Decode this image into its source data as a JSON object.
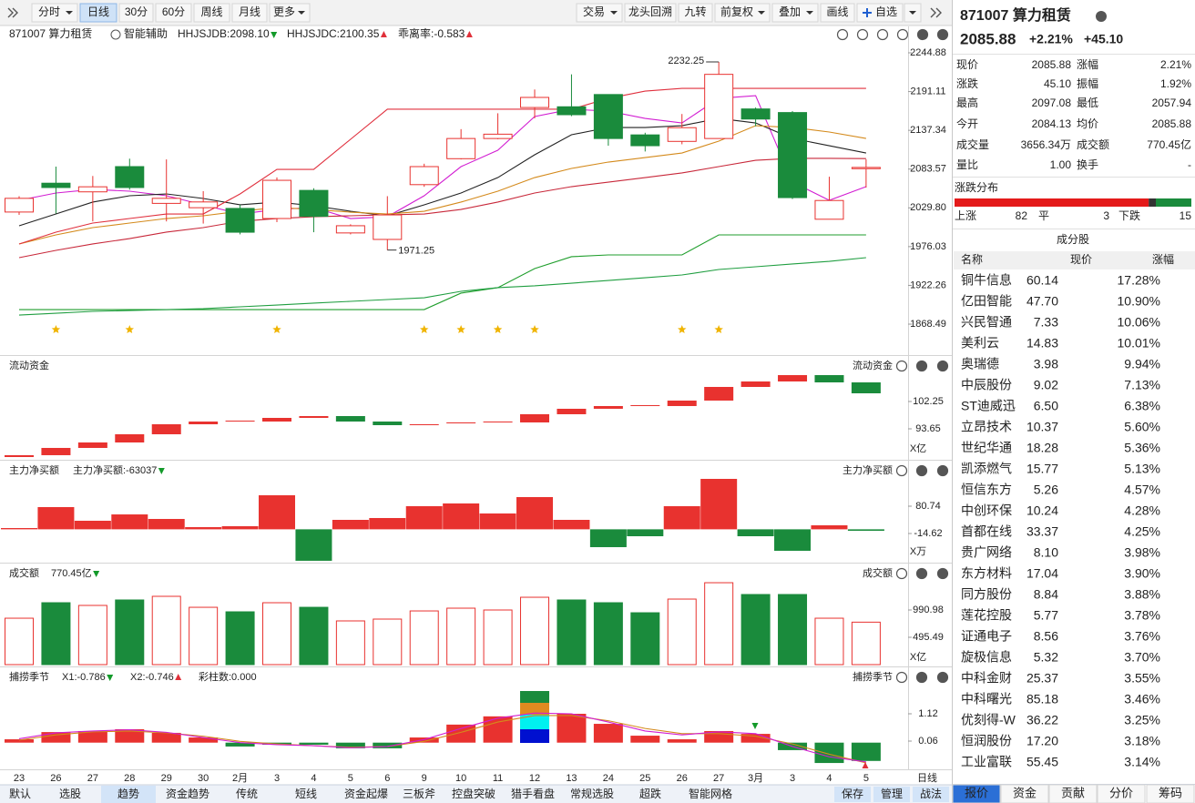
{
  "toolbar": {
    "left": [
      "分时",
      "日线",
      "30分",
      "60分",
      "周线",
      "月线",
      "更多"
    ],
    "selected": 1,
    "right": [
      "交易",
      "龙头回溯",
      "九转",
      "前复权",
      "叠加",
      "画线",
      "自选"
    ]
  },
  "info": {
    "name": "871007 算力租赁",
    "assist": "智能辅助",
    "ind1": "HHJSJDB:2098.10",
    "ind2": "HHJSJDC:2100.35",
    "ind3": "乖离率:-0.583"
  },
  "chart": {
    "dates": [
      "23",
      "26",
      "27",
      "28",
      "29",
      "30",
      "2月",
      "3",
      "4",
      "5",
      "6",
      "9",
      "10",
      "11",
      "12",
      "13",
      "24",
      "25",
      "26",
      "27",
      "3月",
      "3",
      "4",
      "5"
    ],
    "open": [
      2024,
      2064,
      2052,
      2087,
      2036,
      2030,
      2029,
      2015,
      2054,
      1995,
      1986,
      2062,
      2098,
      2126,
      2169,
      2170,
      2187,
      2131,
      2122,
      2126,
      2167,
      2162,
      2014,
      2084.13
    ],
    "high": [
      2046,
      2087,
      2074,
      2098,
      2097,
      2053,
      2034,
      2072,
      2057,
      2007,
      2046,
      2091,
      2139,
      2161,
      2194,
      2215,
      2187,
      2134,
      2160,
      2232.25,
      2169,
      2164,
      2073,
      2097.08
    ],
    "low": [
      2020,
      2022,
      2011,
      2055,
      2011,
      2008,
      1993,
      2010,
      1996,
      1993,
      1971.25,
      2059,
      2097,
      2125,
      2154,
      2157,
      2116,
      2108,
      2118,
      2126,
      2143,
      2042,
      2014,
      2057.94
    ],
    "close": [
      2043,
      2058,
      2059,
      2058,
      2043,
      2038,
      1996,
      2068,
      2018,
      2005,
      2020,
      2087,
      2126,
      2132,
      2183,
      2159,
      2126,
      2116,
      2141,
      2215,
      2153,
      2044,
      2040,
      2085.88
    ],
    "up_color": "#e8322f",
    "down_color": "#1a8b3c",
    "ylim": [
      1828.1,
      2261.3
    ],
    "yticks": [
      2244.88,
      2191.11,
      2137.34,
      2083.57,
      {
        "value": 2029.8,
        "label": "2029.80"
      },
      1976.03,
      1922.26,
      1868.49
    ],
    "lines": [
      {
        "color": "#d21ed2",
        "values": [
          2040.3,
          2050.4,
          2055.4,
          2052.9,
          2046.6,
          2034.0,
          2021.3,
          2027.6,
          2030.2,
          2015.0,
          2017.5,
          2046.6,
          2087.0,
          2109.7,
          2156.5,
          2166.6,
          2164.0,
          2153.9,
          2147.6,
          2181.7,
          2185.5,
          2065.5,
          2040.3,
          2059.2
        ]
      },
      {
        "color": "#222222",
        "values": [
          2004.9,
          2021.3,
          2037.8,
          2046.6,
          2049.1,
          2042.8,
          2034.0,
          2037.8,
          2032.7,
          2025.1,
          2018.8,
          2034.0,
          2050.4,
          2071.8,
          2103.4,
          2131.2,
          2141.3,
          2141.3,
          2143.8,
          2153.9,
          2147.6,
          2126.1,
          2116.0,
          2105.9
        ]
      },
      {
        "color": "#d48a1c",
        "values": [
          1979.7,
          1992.3,
          2002.4,
          2008.7,
          2015.0,
          2018.8,
          2025.1,
          2030.2,
          2027.6,
          2023.8,
          2021.3,
          2025.1,
          2037.8,
          2052.9,
          2071.8,
          2084.5,
          2093.3,
          2099.6,
          2105.9,
          2122.4,
          2143.8,
          2141.3,
          2135.0,
          2126.1
        ]
      },
      {
        "color": "#c8283a",
        "values": [
          1960.7,
          1970.8,
          1979.7,
          1987.2,
          1996.1,
          2002.4,
          2011.2,
          2015.0,
          2017.5,
          2018.8,
          2020.1,
          2021.3,
          2027.6,
          2037.8,
          2050.4,
          2059.2,
          2065.5,
          2071.8,
          2078.2,
          2087.0,
          2095.8,
          2098.4,
          2098.4,
          2098.1
        ]
      },
      {
        "color": "#e0303e",
        "values": [
          1979.7,
          1996.1,
          2008.7,
          2015.0,
          2021.3,
          2021.3,
          2049.1,
          2083.2,
          2083.2,
          2124.9,
          2166.6,
          2166.6,
          2166.6,
          2166.6,
          2166.6,
          2166.6,
          2181.7,
          2191.8,
          2195.6,
          2195.6,
          2195.6,
          2195.6,
          2195.6,
          2195.6
        ]
      },
      {
        "color": "#1f9e2c",
        "values": [
          1888.7,
          1888.7,
          1888.7,
          1888.7,
          1888.7,
          1888.7,
          1888.7,
          1888.7,
          1888.7,
          1888.7,
          1888.7,
          1888.7,
          1911.5,
          1919.1,
          1945.6,
          1962.0,
          1964.5,
          1964.5,
          1964.5,
          1992.3,
          1992.3,
          1992.3,
          1992.3,
          1992.3
        ]
      },
      {
        "color": "#1f9e40",
        "values": [
          1881.1,
          1883.6,
          1886.2,
          1887.4,
          1888.7,
          1890.0,
          1892.5,
          1895.0,
          1897.6,
          1900.1,
          1902.6,
          1905.1,
          1914.0,
          1919.1,
          1921.6,
          1925.3,
          1929.1,
          1932.9,
          1936.7,
          1944.3,
          1948.1,
          1951.9,
          1955.6,
          1960.7
        ]
      }
    ]
  },
  "panels": {
    "flow": {
      "title": "流动资金",
      "unit": "X亿",
      "open": [
        84.76,
        85.34,
        87.63,
        89.35,
        91.93,
        95.08,
        95.94,
        95.94,
        97.09,
        97.66,
        95.94,
        94.8,
        95.37,
        95.66,
        95.66,
        98.24,
        99.96,
        100.82,
        100.82,
        102.54,
        106.84,
        108.56,
        110.56,
        108.27
      ],
      "close": [
        85.34,
        87.63,
        89.35,
        91.93,
        95.08,
        95.94,
        96.23,
        97.09,
        97.66,
        95.94,
        94.8,
        95.08,
        95.66,
        95.94,
        98.24,
        99.96,
        100.82,
        101.1,
        102.54,
        106.84,
        108.56,
        110.56,
        108.27,
        104.83
      ],
      "ylim": [
        83.9,
        116.3
      ],
      "yticks": [
        102.25,
        93.65
      ]
    },
    "main_net": {
      "title": "主力净买额",
      "reading": "主力净买额:-63037",
      "unit": "X万",
      "values": [
        4.4,
        77.6,
        29.9,
        52.0,
        36.2,
        7.6,
        10.8,
        118.9,
        -109.9,
        33.0,
        39.4,
        80.7,
        90.3,
        55.3,
        112.5,
        33.0,
        -62.3,
        -24.2,
        80.7,
        176.1,
        -24.2,
        -75.0,
        14.0,
        -5.1
      ],
      "ylim": [
        -116.4,
        233.3
      ],
      "yticks": [
        80.74,
        -14.62
      ]
    },
    "turnover": {
      "title": "成交额",
      "reading": "770.45亿",
      "unit": "X亿",
      "values": [
        842,
        1123,
        1074,
        1173,
        1239,
        1040,
        958,
        1123,
        1040,
        793,
        826,
        974,
        1024,
        991,
        1222,
        1173,
        1123,
        941,
        1189,
        1486,
        1272,
        1272,
        842,
        770.45
      ],
      "ylim": [
        -33,
        1784
      ],
      "yticks": [
        990.98,
        495.49
      ]
    },
    "season": {
      "title": "捕捞季节",
      "x1": "X1:-0.786",
      "x2": "X2:-0.746",
      "bars": "彩柱数:0.000",
      "values": [
        0.13,
        0.41,
        0.45,
        0.52,
        0.38,
        0.2,
        -0.15,
        -0.08,
        -0.08,
        -0.22,
        -0.22,
        0.2,
        0.7,
        1.02,
        1.19,
        1.12,
        0.73,
        0.27,
        0.13,
        0.45,
        0.34,
        -0.29,
        -0.79,
        -0.71
      ],
      "lines": [
        {
          "color": "#d48a1c",
          "values": [
            0.1,
            0.3,
            0.42,
            0.45,
            0.38,
            0.25,
            0.05,
            -0.05,
            -0.12,
            -0.18,
            -0.15,
            0.05,
            0.4,
            0.8,
            1.05,
            1.05,
            0.85,
            0.55,
            0.35,
            0.35,
            0.25,
            -0.05,
            -0.45,
            -0.786
          ]
        },
        {
          "color": "#d21ed2",
          "values": [
            0.15,
            0.38,
            0.45,
            0.5,
            0.4,
            0.2,
            0.0,
            -0.08,
            -0.12,
            -0.2,
            -0.15,
            0.12,
            0.55,
            0.95,
            1.15,
            1.12,
            0.8,
            0.45,
            0.3,
            0.42,
            0.35,
            -0.15,
            -0.55,
            -0.746
          ]
        }
      ],
      "ylim": [
        -1.035,
        2.816
      ],
      "yticks": [
        1.12,
        0.06
      ]
    }
  },
  "period_label": "日线",
  "bottom_tabs": {
    "items": [
      "默认",
      "选股",
      "趋势",
      "资金趋势",
      "传统",
      "短线",
      "资金起爆",
      "三板斧",
      "控盘突破",
      "猎手看盘",
      "常规选股",
      "超跌",
      "智能网格"
    ],
    "selected": 2,
    "actions": [
      "保存",
      "管理",
      "战法"
    ]
  },
  "quote": {
    "title": "871007 算力租赁",
    "price": "2085.88",
    "pct": "+2.21%",
    "change": "+45.10",
    "cells": [
      {
        "label": "现价",
        "value": "2085.88",
        "color": "#e8322f"
      },
      {
        "label": "涨幅",
        "value": "2.21%",
        "color": "#e8322f"
      },
      {
        "label": "涨跌",
        "value": "45.10",
        "color": "#e8322f"
      },
      {
        "label": "振幅",
        "value": "1.92%",
        "color": "#222222"
      },
      {
        "label": "最高",
        "value": "2097.08",
        "color": "#e8322f"
      },
      {
        "label": "最低",
        "value": "2057.94",
        "color": "#e8322f"
      },
      {
        "label": "今开",
        "value": "2084.13",
        "color": "#e8322f"
      },
      {
        "label": "均价",
        "value": "2085.88",
        "color": "#e8322f"
      },
      {
        "label": "成交量",
        "value": "3656.34万",
        "color": "#222222"
      },
      {
        "label": "成交额",
        "value": "770.45亿",
        "color": "#222222"
      },
      {
        "label": "量比",
        "value": "1.00",
        "color": "#222222"
      },
      {
        "label": "换手",
        "value": "-",
        "color": "#222222"
      }
    ],
    "distribution": {
      "title": "涨跌分布",
      "up_label": "上涨",
      "up": 82,
      "flat_label": "平",
      "flat": 3,
      "down_label": "下跌",
      "down": 15
    },
    "components": {
      "title": "成分股",
      "columns": [
        "名称",
        "现价",
        "涨幅"
      ],
      "rows": [
        {
          "name": "铜牛信息",
          "price": "60.14",
          "pct": "17.28%"
        },
        {
          "name": "亿田智能",
          "price": "47.70",
          "pct": "10.90%"
        },
        {
          "name": "兴民智通",
          "price": "7.33",
          "pct": "10.06%"
        },
        {
          "name": "美利云",
          "price": "14.83",
          "pct": "10.01%"
        },
        {
          "name": "奥瑞德",
          "price": "3.98",
          "pct": "9.94%",
          "color": "#e0208a"
        },
        {
          "name": "中辰股份",
          "price": "9.02",
          "pct": "7.13%"
        },
        {
          "name": "ST迪威迅",
          "price": "6.50",
          "pct": "6.38%",
          "color": "#e0208a"
        },
        {
          "name": "立昂技术",
          "price": "10.37",
          "pct": "5.60%"
        },
        {
          "name": "世纪华通",
          "price": "18.28",
          "pct": "5.36%",
          "color": "#e0208a"
        },
        {
          "name": "凯添燃气",
          "price": "15.77",
          "pct": "5.13%"
        },
        {
          "name": "恒信东方",
          "price": "5.26",
          "pct": "4.57%"
        },
        {
          "name": "中创环保",
          "price": "10.24",
          "pct": "4.28%"
        },
        {
          "name": "首都在线",
          "price": "33.37",
          "pct": "4.25%"
        },
        {
          "name": "贵广网络",
          "price": "8.10",
          "pct": "3.98%"
        },
        {
          "name": "东方材料",
          "price": "17.04",
          "pct": "3.90%"
        },
        {
          "name": "同方股份",
          "price": "8.84",
          "pct": "3.88%"
        },
        {
          "name": "莲花控股",
          "price": "5.77",
          "pct": "3.78%"
        },
        {
          "name": "证通电子",
          "price": "8.56",
          "pct": "3.76%",
          "color": "#e0208a"
        },
        {
          "name": "旋极信息",
          "price": "5.32",
          "pct": "3.70%"
        },
        {
          "name": "中科金财",
          "price": "25.37",
          "pct": "3.55%"
        },
        {
          "name": "中科曙光",
          "price": "85.18",
          "pct": "3.46%"
        },
        {
          "name": "优刻得-W",
          "price": "36.22",
          "pct": "3.25%"
        },
        {
          "name": "恒润股份",
          "price": "17.20",
          "pct": "3.18%"
        },
        {
          "name": "工业富联",
          "price": "55.45",
          "pct": "3.14%",
          "color": "#1f5fd0"
        }
      ]
    },
    "tabs": [
      "报价",
      "资金",
      "贡献",
      "分价",
      "筹码"
    ],
    "selected": 0
  }
}
